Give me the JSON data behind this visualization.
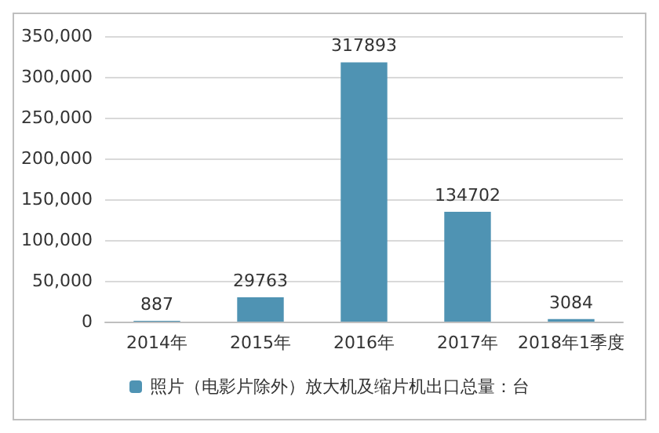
{
  "chart_data": {
    "type": "bar",
    "categories": [
      "2014年",
      "2015年",
      "2016年",
      "2017年",
      "2018年1季度"
    ],
    "series": [
      {
        "name": "照片（电影片除外）放大机及缩片机出口总量：台",
        "color": "#4f93b3",
        "values": [
          887,
          29763,
          317893,
          134702,
          3084
        ]
      }
    ],
    "ylim": [
      0,
      350000
    ],
    "yticks": [
      {
        "value": 0,
        "label": "0"
      },
      {
        "value": 50000,
        "label": "50,000"
      },
      {
        "value": 100000,
        "label": "100,000"
      },
      {
        "value": 150000,
        "label": "150,000"
      },
      {
        "value": 200000,
        "label": "200,000"
      },
      {
        "value": 250000,
        "label": "250,000"
      },
      {
        "value": 300000,
        "label": "300,000"
      },
      {
        "value": 350000,
        "label": "350,000"
      }
    ],
    "grid": "y",
    "legend": "bottom",
    "data_labels": true
  }
}
